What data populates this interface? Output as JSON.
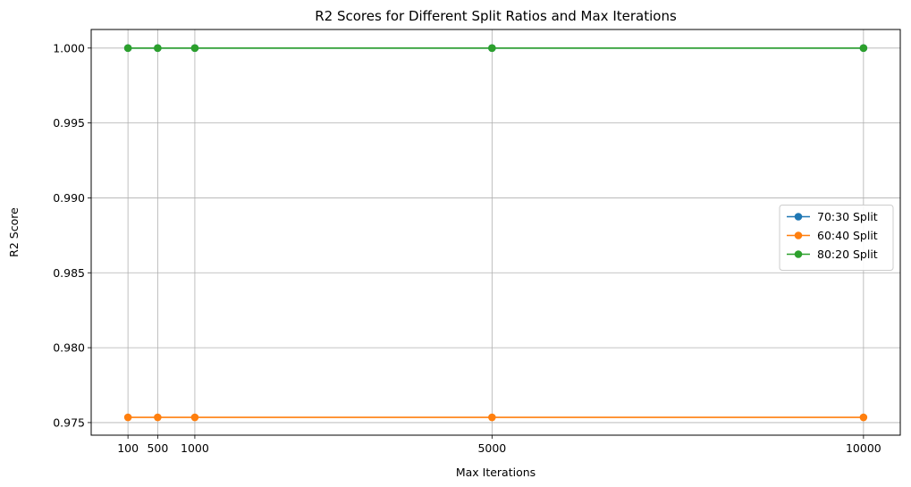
{
  "chart_data": {
    "type": "line",
    "title": "R2 Scores for Different Split Ratios and Max Iterations",
    "xlabel": "Max Iterations",
    "ylabel": "R2 Score",
    "x": [
      100,
      500,
      1000,
      5000,
      10000
    ],
    "x_tick_labels": [
      "100",
      "500",
      "1000",
      "5000",
      "10000"
    ],
    "y_ticks": [
      0.975,
      0.98,
      0.985,
      0.99,
      0.995,
      1.0
    ],
    "y_tick_labels": [
      "0.975",
      "0.980",
      "0.985",
      "0.990",
      "0.995",
      "1.000"
    ],
    "xlim": [
      -395,
      10495
    ],
    "ylim": [
      0.97416,
      1.00124
    ],
    "grid": true,
    "legend_position": "center-right",
    "series": [
      {
        "name": "70:30 Split",
        "color": "#1f77b4",
        "values": [
          1.0,
          1.0,
          1.0,
          1.0,
          1.0
        ]
      },
      {
        "name": "60:40 Split",
        "color": "#ff7f0e",
        "values": [
          0.97535,
          0.97535,
          0.97535,
          0.97535,
          0.97535
        ]
      },
      {
        "name": "80:20 Split",
        "color": "#2ca02c",
        "values": [
          1.0,
          1.0,
          1.0,
          1.0,
          1.0
        ]
      }
    ]
  }
}
